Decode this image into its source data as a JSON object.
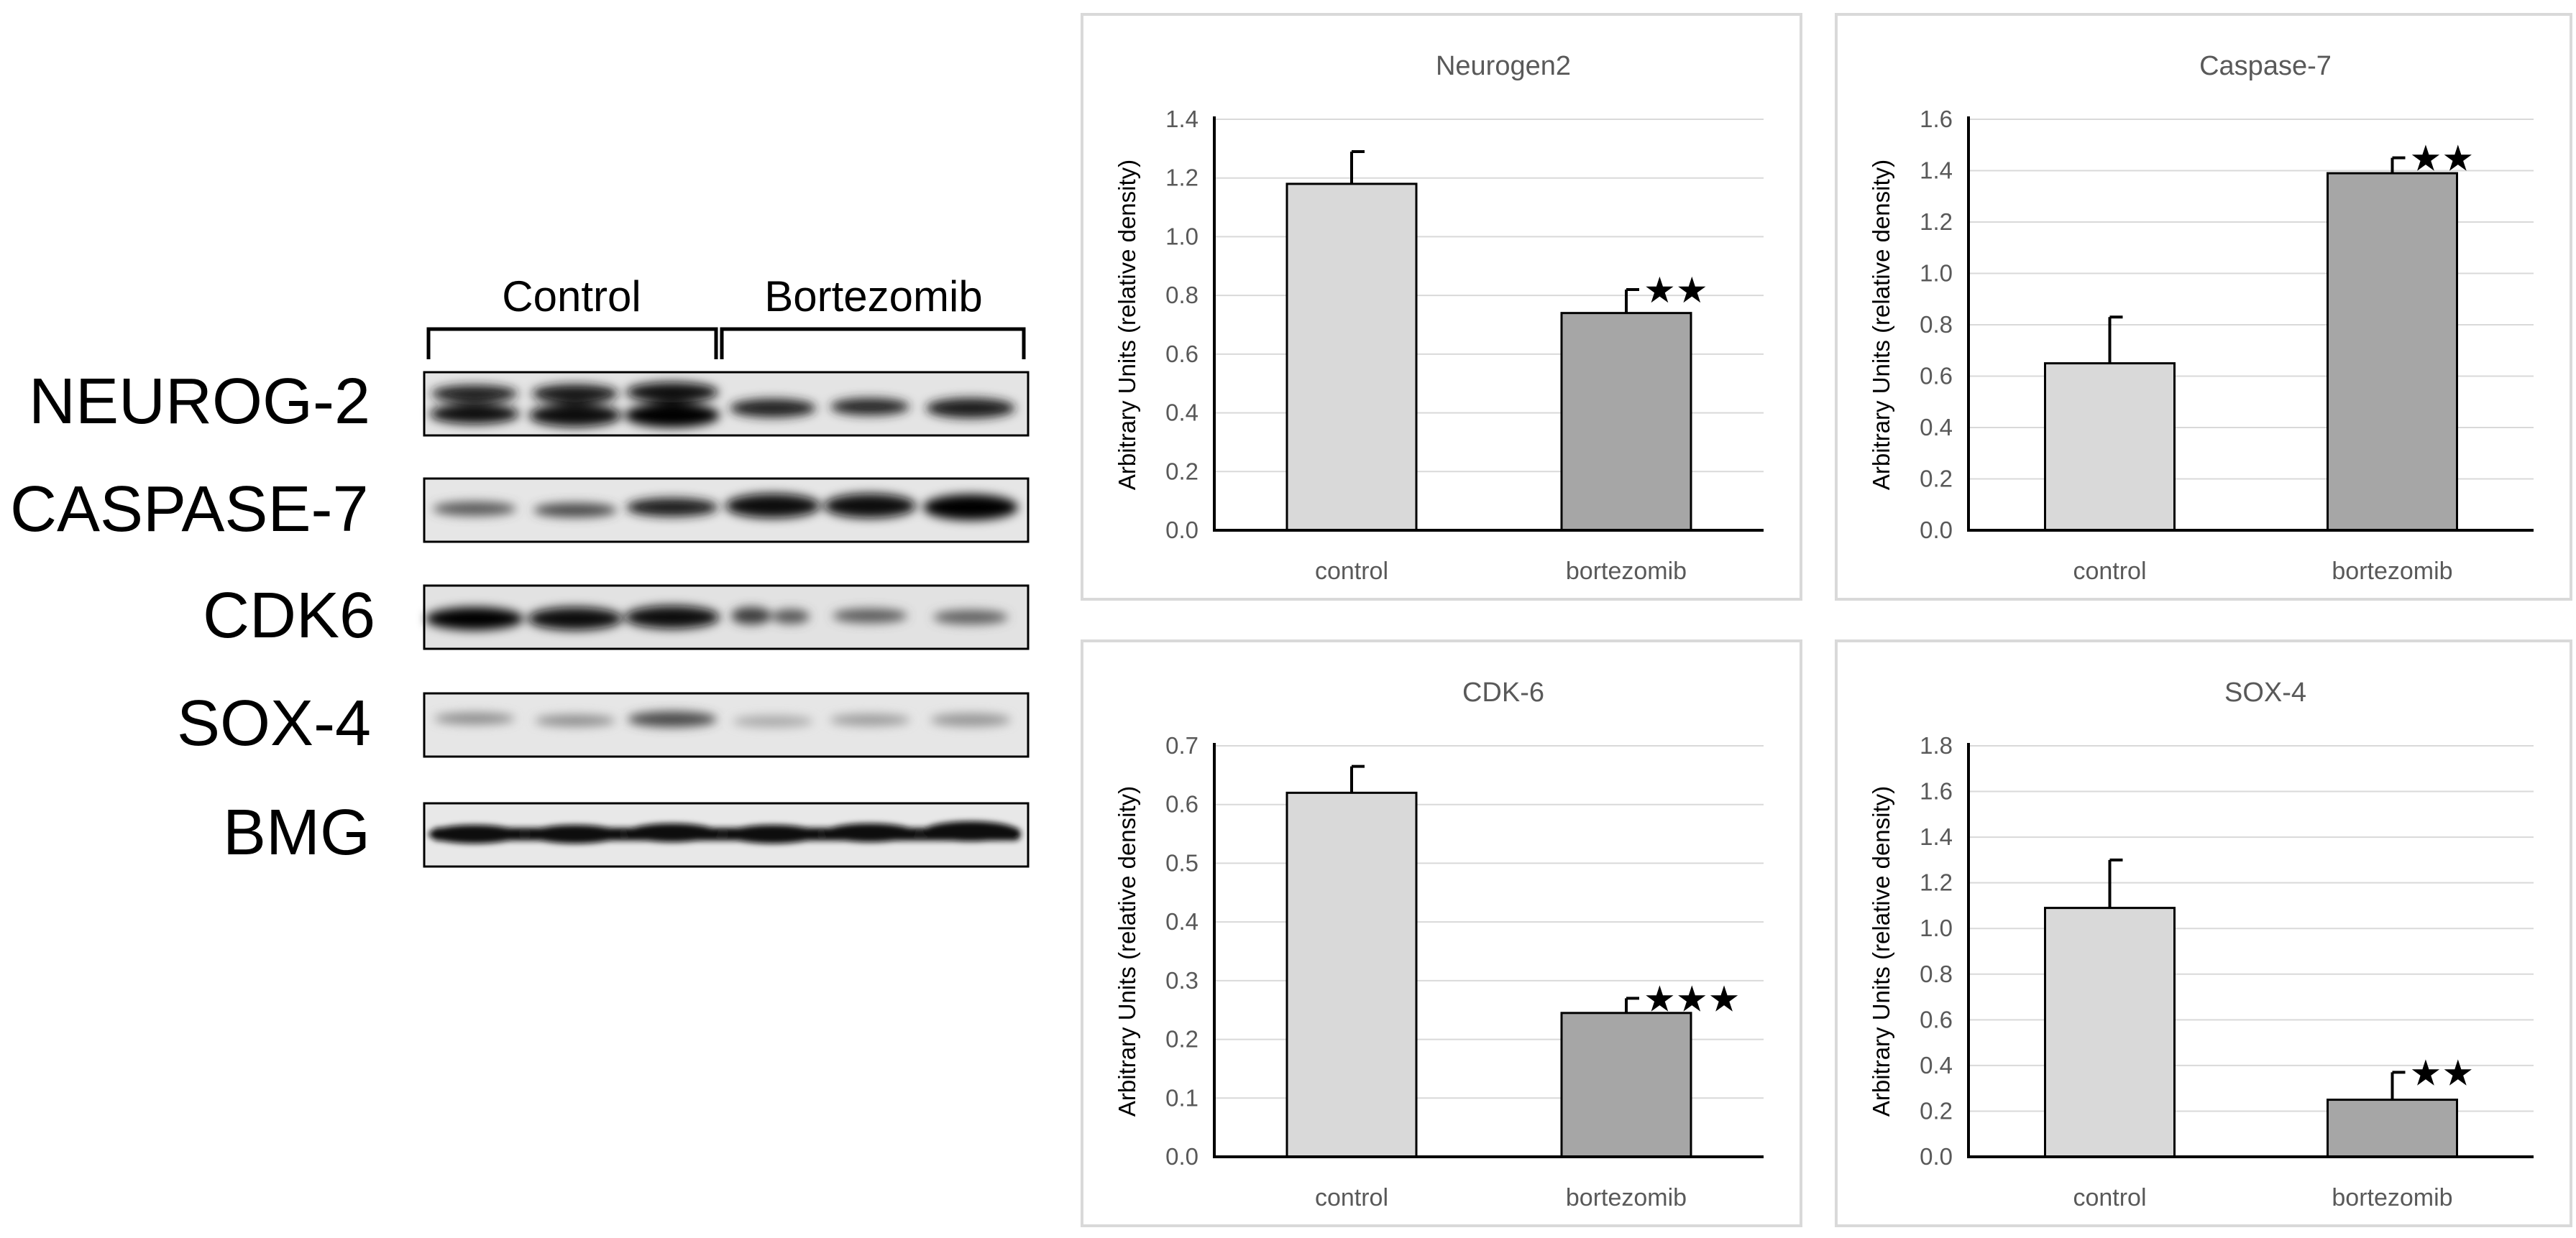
{
  "blot": {
    "groups": [
      "Control",
      "Bortezomib"
    ],
    "proteins": [
      "NEUROG-2",
      "CASPASE-7",
      "CDK6",
      "SOX-4",
      "BMG"
    ]
  },
  "colors": {
    "control_bar": "#d9d9d9",
    "bortezomib_bar": "#a6a6a6",
    "panel_border": "#d9d9d9"
  },
  "chart_data": [
    {
      "type": "bar",
      "title": "Neurogen2",
      "ylabel": "Arbitrary Units (relative density)",
      "categories": [
        "control",
        "bortezomib"
      ],
      "values": [
        1.18,
        0.74
      ],
      "errors": [
        0.11,
        0.08
      ],
      "significance": [
        "",
        "**"
      ],
      "ylim": [
        0,
        1.4
      ],
      "ytick_step": 0.2,
      "ytick_decimals": 1
    },
    {
      "type": "bar",
      "title": "Caspase-7",
      "ylabel": "Arbitrary Units (relative density)",
      "categories": [
        "control",
        "bortezomib"
      ],
      "values": [
        0.65,
        1.39
      ],
      "errors": [
        0.18,
        0.06
      ],
      "significance": [
        "",
        "**"
      ],
      "ylim": [
        0,
        1.6
      ],
      "ytick_step": 0.2,
      "ytick_decimals": 1
    },
    {
      "type": "bar",
      "title": "CDK-6",
      "ylabel": "Arbitrary Units (relative density)",
      "categories": [
        "control",
        "bortezomib"
      ],
      "values": [
        0.62,
        0.245
      ],
      "errors": [
        0.045,
        0.025
      ],
      "significance": [
        "",
        "***"
      ],
      "ylim": [
        0,
        0.7
      ],
      "ytick_step": 0.1,
      "ytick_decimals": 1
    },
    {
      "type": "bar",
      "title": "SOX-4",
      "ylabel": "Arbitrary Units (relative density)",
      "categories": [
        "control",
        "bortezomib"
      ],
      "values": [
        1.09,
        0.25
      ],
      "errors": [
        0.21,
        0.12
      ],
      "significance": [
        "",
        "**"
      ],
      "ylim": [
        0,
        1.8
      ],
      "ytick_step": 0.2,
      "ytick_decimals": 1
    }
  ]
}
